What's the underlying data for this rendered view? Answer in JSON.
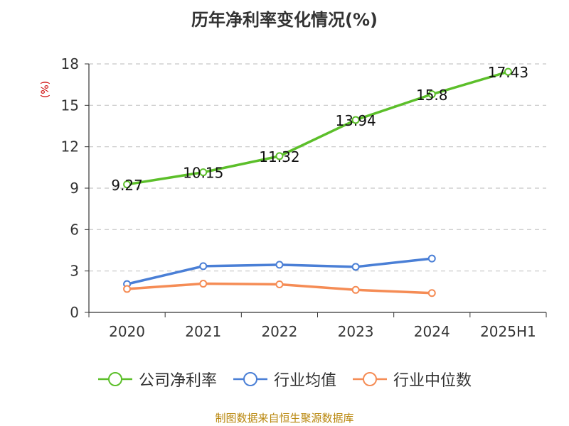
{
  "chart_data": {
    "type": "line",
    "title": "历年净利率变化情况(%)",
    "ylabel": "(%)",
    "xlabel": "",
    "categories": [
      "2020",
      "2021",
      "2022",
      "2023",
      "2024",
      "2025H1"
    ],
    "ylim": [
      0,
      18
    ],
    "yticks": [
      0,
      3,
      6,
      9,
      12,
      15,
      18
    ],
    "grid": true,
    "legend_position": "bottom",
    "series": [
      {
        "name": "公司净利率",
        "color": "#5cbf2a",
        "values": [
          9.27,
          10.15,
          11.32,
          13.94,
          15.8,
          17.43
        ],
        "labels": [
          "9.27",
          "10.15",
          "11.32",
          "13.94",
          "15.8",
          "17.43"
        ]
      },
      {
        "name": "行业均值",
        "color": "#4a7fd6",
        "values": [
          2.05,
          3.35,
          3.45,
          3.3,
          3.9,
          null
        ]
      },
      {
        "name": "行业中位数",
        "color": "#f58c55",
        "values": [
          1.7,
          2.08,
          2.03,
          1.63,
          1.4,
          null
        ]
      }
    ]
  },
  "source_note": "制图数据来自恒生聚源数据库"
}
